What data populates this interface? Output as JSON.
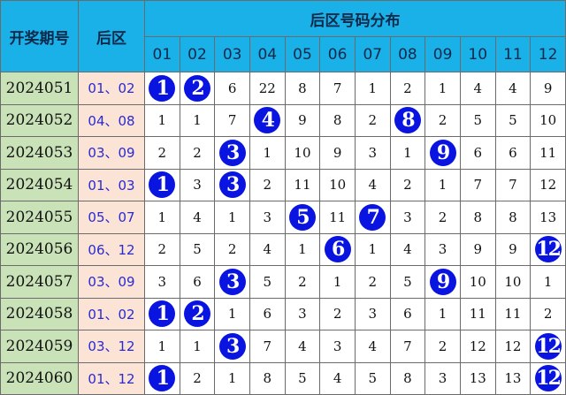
{
  "header": {
    "period": "开奖期号",
    "back": "后区",
    "distribution": "后区号码分布",
    "columns": [
      "01",
      "02",
      "03",
      "04",
      "05",
      "06",
      "07",
      "08",
      "09",
      "10",
      "11",
      "12"
    ]
  },
  "colors": {
    "header": "#1ab0e8",
    "period_bg": "#c9e2b8",
    "back_bg": "#fbe3d6",
    "ball": "#0a14e0"
  },
  "rows": [
    {
      "period": "2024051",
      "back": "01、02",
      "cells": [
        1,
        2,
        6,
        22,
        8,
        7,
        1,
        2,
        1,
        4,
        4,
        9
      ],
      "hits": [
        1,
        2
      ]
    },
    {
      "period": "2024052",
      "back": "04、08",
      "cells": [
        1,
        1,
        7,
        4,
        9,
        8,
        2,
        8,
        2,
        5,
        5,
        10
      ],
      "hits": [
        4,
        8
      ]
    },
    {
      "period": "2024053",
      "back": "03、09",
      "cells": [
        2,
        2,
        3,
        1,
        10,
        9,
        3,
        1,
        9,
        6,
        6,
        11
      ],
      "hits": [
        3,
        9
      ]
    },
    {
      "period": "2024054",
      "back": "01、03",
      "cells": [
        1,
        3,
        3,
        2,
        11,
        10,
        4,
        2,
        1,
        7,
        7,
        12
      ],
      "hits": [
        1,
        3
      ]
    },
    {
      "period": "2024055",
      "back": "05、07",
      "cells": [
        1,
        4,
        1,
        3,
        5,
        11,
        7,
        3,
        2,
        8,
        8,
        13
      ],
      "hits": [
        5,
        7
      ]
    },
    {
      "period": "2024056",
      "back": "06、12",
      "cells": [
        2,
        5,
        2,
        4,
        1,
        6,
        1,
        4,
        3,
        9,
        9,
        12
      ],
      "hits": [
        6,
        12
      ]
    },
    {
      "period": "2024057",
      "back": "03、09",
      "cells": [
        3,
        6,
        3,
        5,
        2,
        1,
        2,
        5,
        9,
        10,
        10,
        1
      ],
      "hits": [
        3,
        9
      ]
    },
    {
      "period": "2024058",
      "back": "01、02",
      "cells": [
        1,
        2,
        1,
        6,
        3,
        2,
        3,
        6,
        1,
        11,
        11,
        2
      ],
      "hits": [
        1,
        2
      ]
    },
    {
      "period": "2024059",
      "back": "03、12",
      "cells": [
        1,
        1,
        3,
        7,
        4,
        3,
        4,
        7,
        2,
        12,
        12,
        12
      ],
      "hits": [
        3,
        12
      ]
    },
    {
      "period": "2024060",
      "back": "01、12",
      "cells": [
        1,
        2,
        1,
        8,
        5,
        4,
        5,
        8,
        3,
        13,
        13,
        12
      ],
      "hits": [
        1,
        12
      ]
    }
  ]
}
